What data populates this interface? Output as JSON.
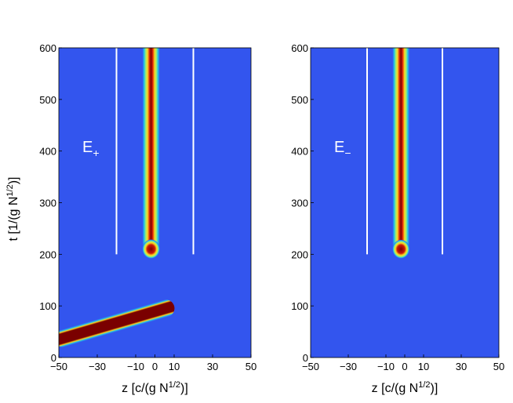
{
  "chart_data": [
    {
      "type": "heatmap",
      "panel_label": "E",
      "panel_label_sub": "+",
      "xlabel": "z [c/(g N",
      "xlabel_sup": "1/2",
      "xlabel_end": ")]",
      "ylabel": "t [1/(g N",
      "ylabel_sup": "1/2",
      "ylabel_end": ")]",
      "xlim": [
        -50,
        50
      ],
      "ylim": [
        0,
        600
      ],
      "xticks": [
        -50,
        -30,
        -10,
        0,
        10,
        30,
        50
      ],
      "yticks": [
        0,
        100,
        200,
        300,
        400,
        500,
        600
      ],
      "background_color": "#3355ee",
      "beam_color": "#7a0000",
      "guide_lines_z": [
        -20,
        20
      ],
      "guide_lines_t_start": 200,
      "vertical_beam": {
        "t_start": 200,
        "t_end": 600,
        "z_center": -2,
        "width": 9
      },
      "oblique_beam": {
        "z_start": -50,
        "t_start": 35,
        "z_end": 10,
        "t_end": 100,
        "width": 15
      }
    },
    {
      "type": "heatmap",
      "panel_label": "E",
      "panel_label_sub": "−",
      "xlabel": "z [c/(g N",
      "xlabel_sup": "1/2",
      "xlabel_end": ")]",
      "xlim": [
        -50,
        50
      ],
      "ylim": [
        0,
        600
      ],
      "xticks": [
        -50,
        -30,
        -10,
        0,
        10,
        30,
        50
      ],
      "yticks": [
        0,
        100,
        200,
        300,
        400,
        500,
        600
      ],
      "background_color": "#3355ee",
      "beam_color": "#7a0000",
      "guide_lines_z": [
        -20,
        20
      ],
      "guide_lines_t_start": 200,
      "vertical_beam": {
        "t_start": 200,
        "t_end": 600,
        "z_center": -2,
        "width": 9
      }
    }
  ]
}
